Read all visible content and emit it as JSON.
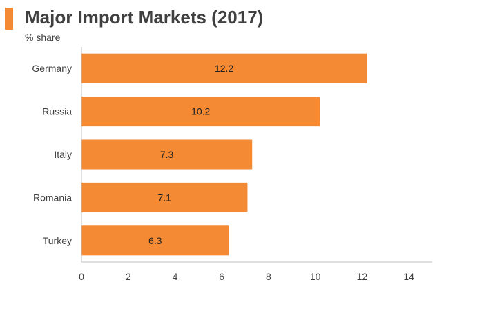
{
  "header": {
    "title": "Major Import Markets (2017)",
    "subtitle": "% share"
  },
  "colors": {
    "bar": "#f58a34",
    "accent": "#f58a34",
    "axis": "#bfbfbf",
    "text": "#404040"
  },
  "chart_data": {
    "type": "bar",
    "orientation": "horizontal",
    "title": "Major Import Markets (2017)",
    "ylabel": "% share",
    "categories": [
      "Germany",
      "Russia",
      "Italy",
      "Romania",
      "Turkey"
    ],
    "values": [
      12.2,
      10.2,
      7.3,
      7.1,
      6.3
    ],
    "data_labels": [
      "12.2",
      "10.2",
      "7.3",
      "7.1",
      "6.3"
    ],
    "xlim": [
      0,
      15
    ],
    "xticks": [
      0,
      2,
      4,
      6,
      8,
      10,
      12,
      14
    ],
    "grid": false,
    "legend": "none"
  }
}
